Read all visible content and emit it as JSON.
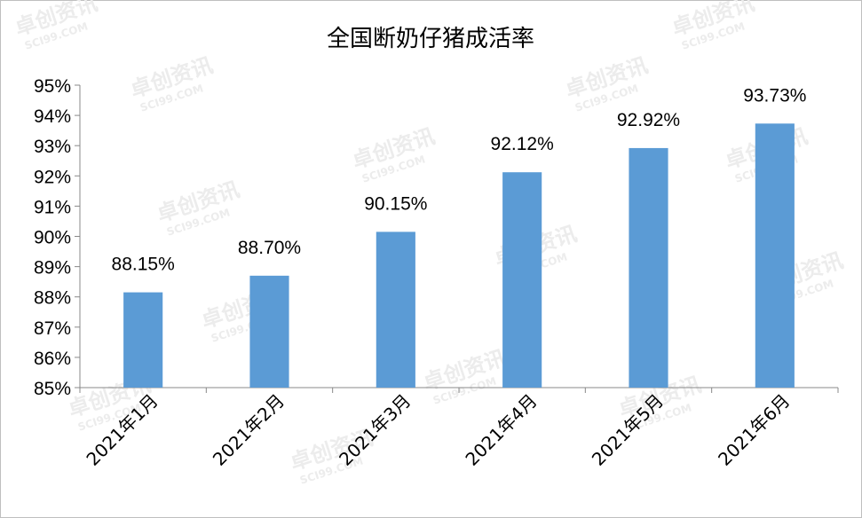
{
  "watermark": {
    "text_cn": "卓创资讯",
    "text_en": "SCI99.COM"
  },
  "chart_data": {
    "type": "bar",
    "title": "全国断奶仔猪成活率",
    "xlabel": "",
    "ylabel": "",
    "categories": [
      "2021年1月",
      "2021年2月",
      "2021年3月",
      "2021年4月",
      "2021年5月",
      "2021年6月"
    ],
    "values": [
      88.15,
      88.7,
      90.15,
      92.12,
      92.92,
      93.73
    ],
    "data_labels": [
      "88.15%",
      "88.70%",
      "90.15%",
      "92.12%",
      "92.92%",
      "93.73%"
    ],
    "ylim": [
      85,
      95
    ],
    "yticks": [
      85,
      86,
      87,
      88,
      89,
      90,
      91,
      92,
      93,
      94,
      95
    ],
    "ytick_labels": [
      "85%",
      "86%",
      "87%",
      "88%",
      "89%",
      "90%",
      "91%",
      "92%",
      "93%",
      "94%",
      "95%"
    ],
    "bar_color": "#5b9bd5",
    "grid": false,
    "legend": "none"
  }
}
